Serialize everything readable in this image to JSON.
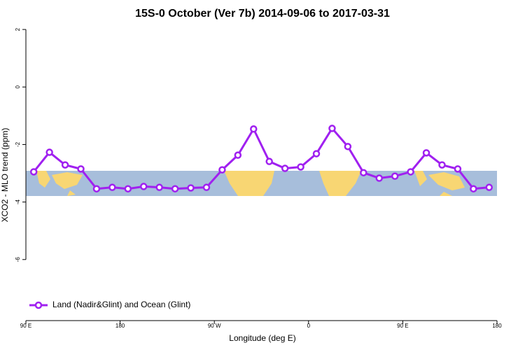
{
  "chart_data": {
    "type": "line",
    "title": "15S-0 October (Ver 7b)   2014-09-06 to 2017-03-31",
    "x_label": "Longitude (deg E)",
    "y_label": "XCO2 - MLO trend (ppm)",
    "xlim": [
      90,
      540
    ],
    "xticks": [
      {
        "value": 90,
        "label": "90 E"
      },
      {
        "value": 180,
        "label": "180"
      },
      {
        "value": 270,
        "label": "90 W"
      },
      {
        "value": 360,
        "label": "0"
      },
      {
        "value": 450,
        "label": "90 E"
      },
      {
        "value": 540,
        "label": "180"
      }
    ],
    "ylim": [
      -8.05,
      2.1
    ],
    "yticks": [
      2,
      0,
      -2,
      -4,
      -6
    ],
    "legend": "bottom-left",
    "series": [
      {
        "name": "Land (Nadir&Glint) and Ocean (Glint)",
        "color": "#a020f0",
        "x": [
          97.5,
          112.5,
          127.5,
          142.5,
          157.5,
          172.5,
          187.5,
          202.5,
          217.5,
          232.5,
          247.5,
          262.5,
          277.5,
          292.5,
          307.5,
          322.5,
          337.5,
          352.5,
          367.5,
          382.5,
          397.5,
          412.5,
          427.5,
          442.5,
          457.5,
          472.5,
          487.5,
          502.5,
          517.5,
          532.5
        ],
        "values": [
          -2.95,
          -2.27,
          -2.71,
          -2.85,
          -3.54,
          -3.49,
          -3.54,
          -3.46,
          -3.49,
          -3.54,
          -3.51,
          -3.49,
          -2.88,
          -2.37,
          -1.46,
          -2.59,
          -2.83,
          -2.78,
          -2.32,
          -1.44,
          -2.07,
          -2.98,
          -3.17,
          -3.1,
          -2.95,
          -2.29,
          -2.71,
          -2.85,
          -3.54,
          -3.49
        ]
      }
    ]
  }
}
